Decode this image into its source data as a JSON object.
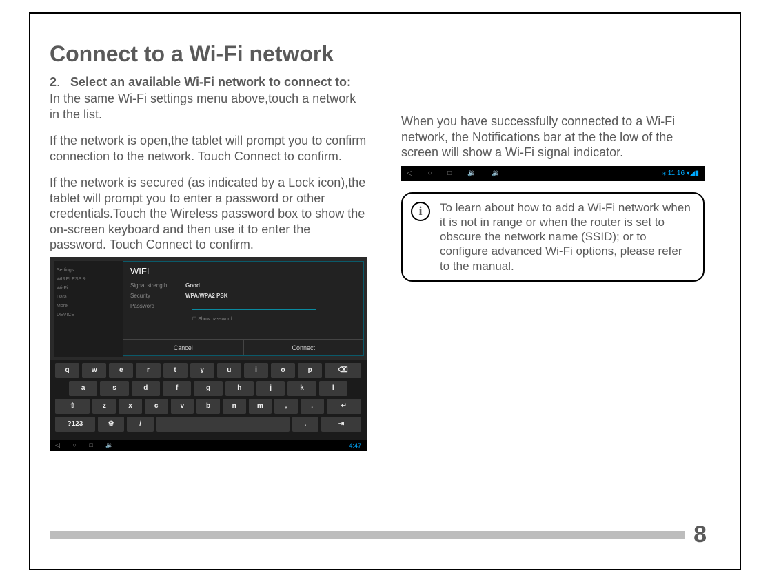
{
  "title": "Connect to a Wi-Fi network",
  "step": {
    "num": "2",
    "head": "Select an available Wi-Fi network to connect to:",
    "p1": "In the same Wi-Fi settings menu above,touch a network in the list.",
    "p2": "If the network is open,the tablet will prompt you to confirm connection to the network. Touch Connect to confirm.",
    "p3": "If the network is secured (as indicated by a Lock icon),the tablet will prompt you to enter a password or other credentials.Touch the Wireless password box to show the on-screen keyboard and then use it to enter the password. Touch Connect to confirm."
  },
  "tablet": {
    "sidebar": {
      "title": "Settings",
      "section": "WIRELESS &",
      "items": [
        "Wi-Fi",
        "Data",
        "More"
      ],
      "device": "DEVICE"
    },
    "dialog": {
      "title": "WIFI",
      "signal_label": "Signal strength",
      "signal_value": "Good",
      "security_label": "Security",
      "security_value": "WPA/WPA2 PSK",
      "password_label": "Password",
      "show_password": "Show password",
      "cancel": "Cancel",
      "connect": "Connect"
    },
    "keyboard": {
      "row1": [
        "q",
        "w",
        "e",
        "r",
        "t",
        "y",
        "u",
        "i",
        "o",
        "p",
        "⌫"
      ],
      "row2": [
        "a",
        "s",
        "d",
        "f",
        "g",
        "h",
        "j",
        "k",
        "l"
      ],
      "row3": [
        "⇧",
        "z",
        "x",
        "c",
        "v",
        "b",
        "n",
        "m",
        ",",
        ".",
        "↵"
      ],
      "row4_left": "?123",
      "row4_slash": "/",
      "row4_nav": "⇥"
    },
    "navbar": {
      "icons": "◁ ○ □ 🔉",
      "time": "4:47"
    }
  },
  "right": {
    "p": "When you have successfully connected to a Wi-Fi network, the Notifications bar at the the low of the screen will show a Wi-Fi signal indicator.",
    "statusbar": {
      "left": "◁ ○ □ 🔉 🔉",
      "right": "11:16 ▾◢▮"
    },
    "info": "To learn about how to add a Wi-Fi network when it is not in range or when the router is set to obscure the network name (SSID); or to configure advanced Wi-Fi options, please refer to the manual."
  },
  "pageNumber": "8",
  "colors": {
    "text": "#5a5a5a",
    "accent": "#0af",
    "keyboard_key": "#3a3a3a",
    "footer_bar": "#bdbdbd"
  }
}
